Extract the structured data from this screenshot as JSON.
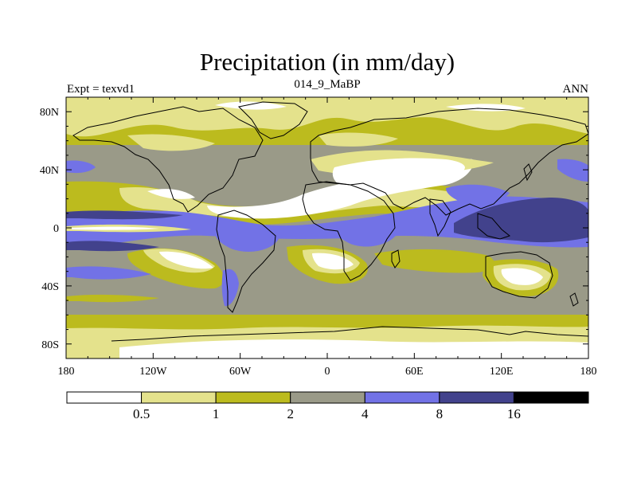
{
  "title": "Precipitation (in mm/day)",
  "subtitle_left": "Expt = texvd1",
  "subtitle_center": "014_9_MaBP",
  "subtitle_right": "ANN",
  "x_ticks": [
    "180",
    "120W",
    "60W",
    "0",
    "60E",
    "120E",
    "180"
  ],
  "y_ticks": [
    "80N",
    "40N",
    "0",
    "40S",
    "80S"
  ],
  "colorbar": {
    "colors": [
      "#ffffff",
      "#e4e28c",
      "#bcbb1e",
      "#9a9a88",
      "#7272e6",
      "#42428c",
      "#000000"
    ],
    "labels": [
      "0.5",
      "1",
      "2",
      "4",
      "8",
      "16"
    ]
  },
  "chart_data": {
    "type": "heatmap",
    "title": "Precipitation (in mm/day)",
    "xlim": [
      -180,
      180
    ],
    "ylim": [
      -90,
      90
    ],
    "x_ticks": [
      -180,
      -120,
      -60,
      0,
      60,
      120,
      180
    ],
    "y_ticks": [
      80,
      40,
      0,
      -40,
      -80
    ],
    "levels": [
      0.5,
      1,
      2,
      4,
      8,
      16
    ],
    "colors": [
      "#ffffff",
      "#e4e28c",
      "#bcbb1e",
      "#9a9a88",
      "#7272e6",
      "#42428c",
      "#000000"
    ],
    "field_description": "Annual mean precipitation field, 014_9_MaBP, experiment texvd1"
  }
}
